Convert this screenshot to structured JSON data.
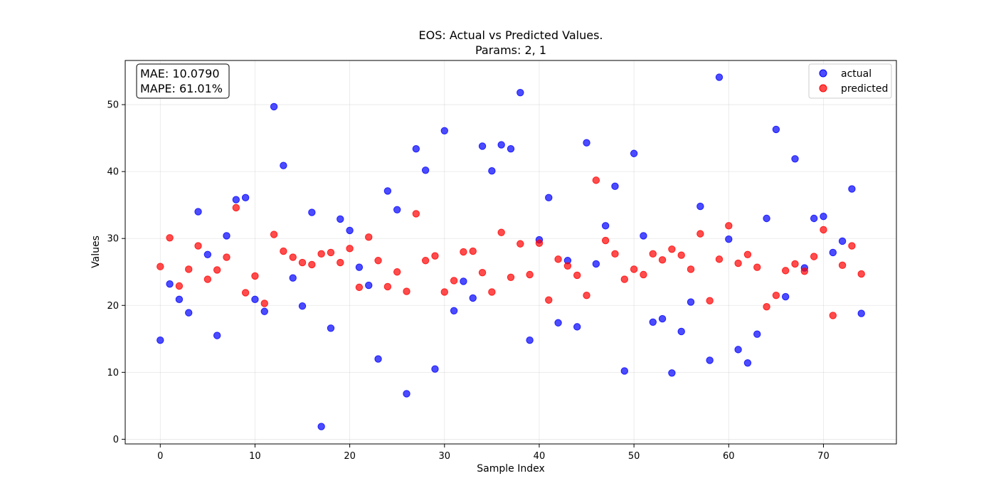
{
  "chart_data": {
    "type": "scatter",
    "title": "EOS: Actual vs Predicted Values.",
    "subtitle": "Params: 2, 1",
    "xlabel": "Sample Index",
    "ylabel": "Values",
    "xlim": [
      -3.7,
      77.7
    ],
    "ylim": [
      -0.7,
      56.6
    ],
    "xticks": [
      0,
      10,
      20,
      30,
      40,
      50,
      60,
      70
    ],
    "yticks": [
      0,
      10,
      20,
      30,
      40,
      50
    ],
    "grid": true,
    "legend_position": "top-right",
    "stats": {
      "mae": "MAE: 10.0790",
      "mape": "MAPE: 61.01%"
    },
    "series": [
      {
        "name": "actual",
        "color": "#0000ff",
        "x": [
          0,
          1,
          2,
          3,
          4,
          5,
          6,
          7,
          8,
          9,
          10,
          11,
          12,
          13,
          14,
          15,
          16,
          17,
          18,
          19,
          20,
          21,
          22,
          23,
          24,
          25,
          26,
          27,
          28,
          29,
          30,
          31,
          32,
          33,
          34,
          35,
          36,
          37,
          38,
          39,
          40,
          41,
          42,
          43,
          44,
          45,
          46,
          47,
          48,
          49,
          50,
          51,
          52,
          53,
          54,
          55,
          56,
          57,
          58,
          59,
          60,
          61,
          62,
          63,
          64,
          65,
          66,
          67,
          68,
          69,
          70,
          71,
          72,
          73,
          74
        ],
        "values": [
          14.8,
          23.2,
          20.9,
          18.9,
          34.0,
          27.6,
          15.5,
          30.4,
          35.8,
          36.1,
          20.9,
          19.1,
          49.7,
          40.9,
          24.1,
          19.9,
          33.9,
          1.9,
          16.6,
          32.9,
          31.2,
          25.7,
          23.0,
          12.0,
          37.1,
          34.3,
          6.8,
          43.4,
          40.2,
          10.5,
          46.1,
          19.2,
          23.6,
          21.1,
          43.8,
          40.1,
          44.0,
          43.4,
          51.8,
          14.8,
          29.8,
          36.1,
          17.4,
          26.7,
          16.8,
          44.3,
          26.2,
          31.9,
          37.8,
          10.2,
          42.7,
          30.4,
          17.5,
          18.0,
          9.9,
          16.1,
          20.5,
          34.8,
          11.8,
          54.1,
          29.9,
          13.4,
          11.4,
          15.7,
          33.0,
          46.3,
          21.3,
          41.9,
          25.6,
          33.0,
          33.3,
          27.9,
          29.6,
          37.4,
          18.8
        ]
      },
      {
        "name": "predicted",
        "color": "#ff0000",
        "x": [
          0,
          1,
          2,
          3,
          4,
          5,
          6,
          7,
          8,
          9,
          10,
          11,
          12,
          13,
          14,
          15,
          16,
          17,
          18,
          19,
          20,
          21,
          22,
          23,
          24,
          25,
          26,
          27,
          28,
          29,
          30,
          31,
          32,
          33,
          34,
          35,
          36,
          37,
          38,
          39,
          40,
          41,
          42,
          43,
          44,
          45,
          46,
          47,
          48,
          49,
          50,
          51,
          52,
          53,
          54,
          55,
          56,
          57,
          58,
          59,
          60,
          61,
          62,
          63,
          64,
          65,
          66,
          67,
          68,
          69,
          70,
          71,
          72,
          73,
          74
        ],
        "values": [
          25.8,
          30.1,
          22.9,
          25.4,
          28.9,
          23.9,
          25.3,
          27.2,
          34.6,
          21.9,
          24.4,
          20.3,
          30.6,
          28.1,
          27.2,
          26.4,
          26.1,
          27.7,
          27.9,
          26.4,
          28.5,
          22.7,
          30.2,
          26.7,
          22.8,
          25.0,
          22.1,
          33.7,
          26.7,
          27.4,
          22.0,
          23.7,
          28.0,
          28.1,
          24.9,
          22.0,
          30.9,
          24.2,
          29.2,
          24.6,
          29.3,
          20.8,
          26.9,
          25.9,
          24.5,
          21.5,
          38.7,
          29.7,
          27.7,
          23.9,
          25.4,
          24.6,
          27.7,
          26.8,
          28.4,
          27.5,
          25.4,
          30.7,
          20.7,
          26.9,
          31.9,
          26.3,
          27.6,
          25.7,
          19.8,
          21.5,
          25.2,
          26.2,
          25.1,
          27.3,
          31.3,
          18.5,
          26.0,
          28.9,
          24.7
        ]
      }
    ]
  }
}
